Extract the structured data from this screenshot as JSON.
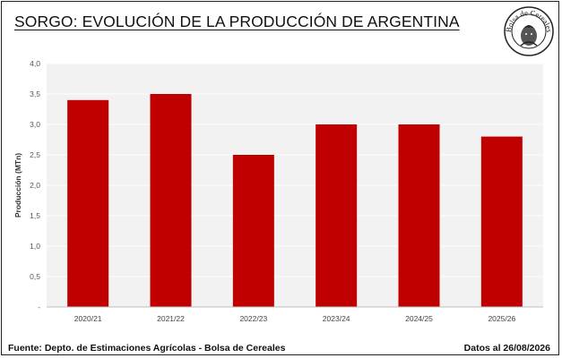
{
  "header": {
    "title": "SORGO: EVOLUCIÓN DE LA PRODUCCIÓN DE ARGENTINA",
    "logo_text": "Bolsa de Cereales"
  },
  "footer": {
    "source": "Fuente: Depto. de Estimaciones Agrícolas - Bolsa de Cereales",
    "date": "Datos al 26/08/2026"
  },
  "colors": {
    "bar": "#c00000",
    "plot_background": "#f2f2f2",
    "grid": "#ffffff"
  },
  "chart_data": {
    "type": "bar",
    "title": "SORGO: EVOLUCIÓN DE LA PRODUCCIÓN DE ARGENTINA",
    "xlabel": "",
    "ylabel": "Producción (MTn)",
    "categories": [
      "2020/21",
      "2021/22",
      "2022/23",
      "2023/24",
      "2024/25",
      "2025/26"
    ],
    "values": [
      3.4,
      3.5,
      2.5,
      3.0,
      3.0,
      2.8
    ],
    "ylim": [
      0,
      4.0
    ],
    "yticks": [
      "-",
      "0,5",
      "1,0",
      "1,5",
      "2,0",
      "2,5",
      "3,0",
      "3,5",
      "4,0"
    ],
    "grid": true,
    "legend": "none"
  }
}
